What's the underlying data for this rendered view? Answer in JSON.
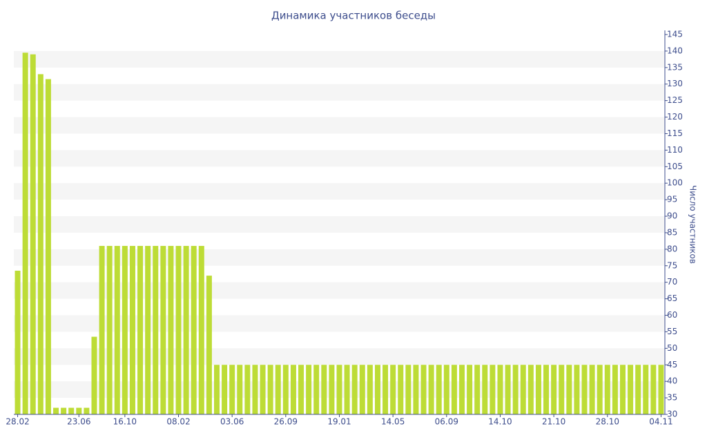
{
  "chart_data": {
    "type": "bar",
    "title": "Динамика участников беседы",
    "y_axis_label": "Число участников",
    "categories": [
      "28.02",
      null,
      null,
      null,
      null,
      null,
      null,
      null,
      "23.06",
      null,
      null,
      null,
      null,
      null,
      "16.10",
      null,
      null,
      null,
      null,
      null,
      null,
      "08.02",
      null,
      null,
      null,
      null,
      null,
      null,
      "03.06",
      null,
      null,
      null,
      null,
      null,
      null,
      "26.09",
      null,
      null,
      null,
      null,
      null,
      null,
      "19.01",
      null,
      null,
      null,
      null,
      null,
      null,
      "14.05",
      null,
      null,
      null,
      null,
      null,
      null,
      "06.09",
      null,
      null,
      null,
      null,
      null,
      null,
      "14.10",
      null,
      null,
      null,
      null,
      null,
      null,
      "21.10",
      null,
      null,
      null,
      null,
      null,
      null,
      "28.10",
      null,
      null,
      null,
      null,
      null,
      null,
      "04.11"
    ],
    "values": [
      73.5,
      139.5,
      139,
      133,
      131.5,
      32,
      32,
      32,
      32,
      32,
      53.5,
      81,
      81,
      81,
      81,
      81,
      81,
      81,
      81,
      81,
      81,
      81,
      81,
      81,
      81,
      72,
      45,
      45,
      45,
      45,
      45,
      45,
      45,
      45,
      45,
      45,
      45,
      45,
      45,
      45,
      45,
      45,
      45,
      45,
      45,
      45,
      45,
      45,
      45,
      45,
      45,
      45,
      45,
      45,
      45,
      45,
      45,
      45,
      45,
      45,
      45,
      45,
      45,
      45,
      45,
      45,
      45,
      45,
      45,
      45,
      45,
      45,
      45,
      45,
      45,
      45,
      45,
      45,
      45,
      45,
      45,
      45,
      45,
      45,
      45
    ],
    "color": "#bddc36",
    "ylim": [
      30,
      145
    ],
    "yticks": [
      30,
      35,
      40,
      45,
      50,
      55,
      60,
      65,
      70,
      75,
      80,
      85,
      90,
      95,
      100,
      105,
      110,
      115,
      120,
      125,
      130,
      135,
      140,
      145
    ],
    "y_axis_side": "right",
    "grid": "bands"
  }
}
